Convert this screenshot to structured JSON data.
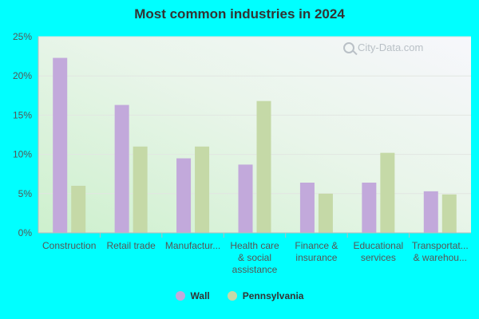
{
  "chart_data": {
    "type": "bar",
    "title": "Most common industries in 2024",
    "categories": [
      [
        "Construction"
      ],
      [
        "Retail trade"
      ],
      [
        "Manufactur..."
      ],
      [
        "Health care",
        "& social",
        "assistance"
      ],
      [
        "Finance &",
        "insurance"
      ],
      [
        "Educational",
        "services"
      ],
      [
        "Transportat...",
        "& warehou..."
      ]
    ],
    "series": [
      {
        "name": "Wall",
        "color": "#c2a9db",
        "values": [
          22.3,
          16.3,
          9.5,
          8.7,
          6.4,
          6.4,
          5.3
        ]
      },
      {
        "name": "Pennsylvania",
        "color": "#c5d9a7",
        "values": [
          6.0,
          11.0,
          11.0,
          16.8,
          5.0,
          10.2,
          4.9
        ]
      }
    ],
    "ylim": [
      0,
      25
    ],
    "yticks": [
      0,
      5,
      10,
      15,
      20,
      25
    ],
    "ytick_format": "percent",
    "grid": true,
    "legend": "bottom-center"
  },
  "watermark": {
    "text": "City-Data.com",
    "icon": "magnifier-icon"
  }
}
